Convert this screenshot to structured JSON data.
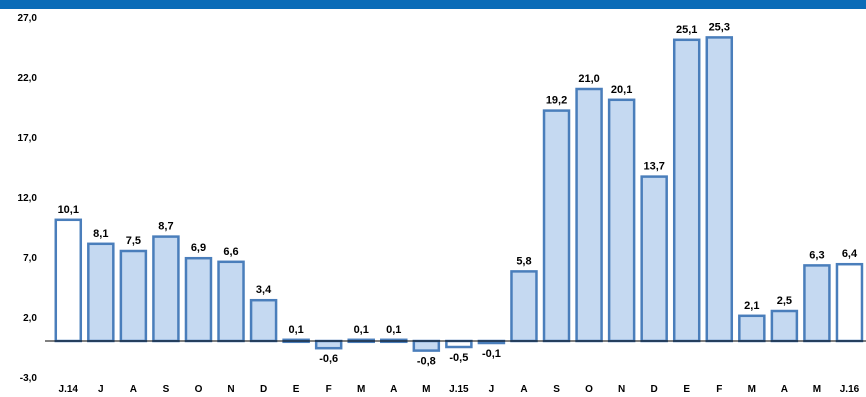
{
  "chart_data": {
    "type": "bar",
    "title": "",
    "xlabel": "",
    "ylabel": "",
    "ylim": [
      -3.0,
      27.0
    ],
    "yticks": [
      "27,0",
      "22,0",
      "17,0",
      "12,0",
      "7,0",
      "2,0",
      "-3,0"
    ],
    "ytick_values": [
      27.0,
      22.0,
      17.0,
      12.0,
      7.0,
      2.0,
      -3.0
    ],
    "categories": [
      "J.14",
      "J",
      "A",
      "S",
      "O",
      "N",
      "D",
      "E",
      "F",
      "M",
      "A",
      "M",
      "J.15",
      "J",
      "A",
      "S",
      "O",
      "N",
      "D",
      "E",
      "F",
      "M",
      "A",
      "M",
      "J.16"
    ],
    "values": [
      10.1,
      8.1,
      7.5,
      8.7,
      6.9,
      6.6,
      3.4,
      0.1,
      -0.6,
      0.1,
      0.1,
      -0.8,
      -0.5,
      -0.1,
      5.8,
      19.2,
      21.0,
      20.1,
      13.7,
      25.1,
      25.3,
      2.1,
      2.5,
      6.3,
      6.4
    ],
    "labels": [
      "10,1",
      "8,1",
      "7,5",
      "8,7",
      "6,9",
      "6,6",
      "3,4",
      "0,1",
      "-0,6",
      "0,1",
      "0,1",
      "-0,8",
      "-0,5",
      "-0,1",
      "5,8",
      "19,2",
      "21,0",
      "20,1",
      "13,7",
      "25,1",
      "25,3",
      "2,1",
      "2,5",
      "6,3",
      "6,4"
    ],
    "highlighted": [
      true,
      false,
      false,
      false,
      false,
      false,
      false,
      false,
      false,
      false,
      false,
      false,
      true,
      false,
      false,
      false,
      false,
      false,
      false,
      false,
      false,
      false,
      false,
      false,
      true
    ],
    "grid": false,
    "colors": {
      "bar_fill": "#c5d9f1",
      "bar_stroke": "#4a7ebb",
      "highlight_fill": "#ffffff",
      "top_bar": "#0b6cb8"
    }
  }
}
